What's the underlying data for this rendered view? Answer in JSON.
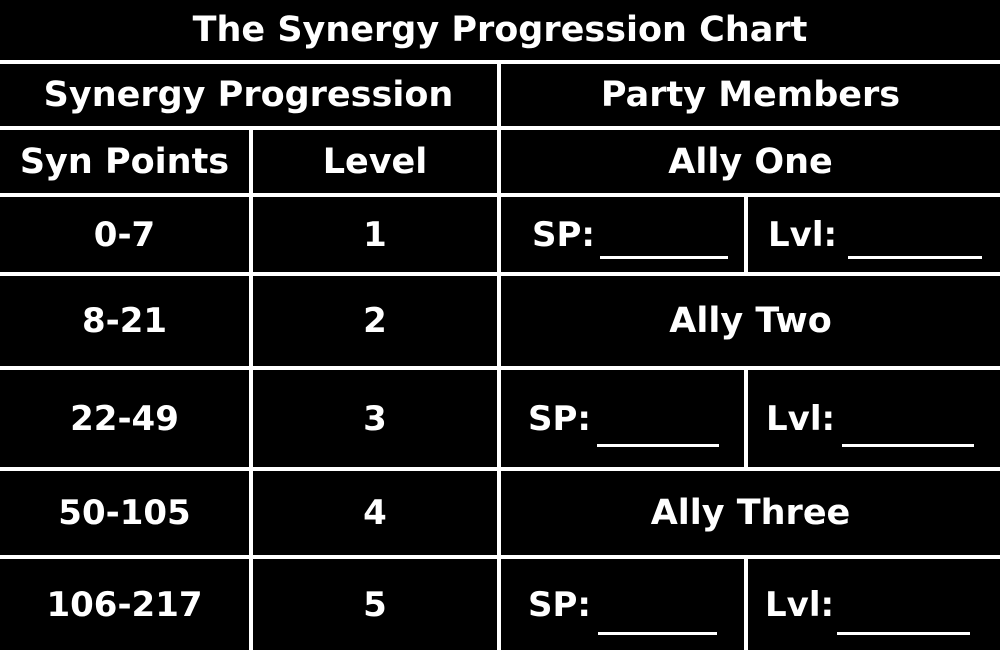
{
  "title": "The Synergy Progression Chart",
  "headers": {
    "synergy_progression": "Synergy Progression",
    "party_members": "Party Members",
    "syn_points": "Syn Points",
    "level": "Level"
  },
  "rows": [
    {
      "points": "0-7",
      "level": "1"
    },
    {
      "points": "8-21",
      "level": "2"
    },
    {
      "points": "22-49",
      "level": "3"
    },
    {
      "points": "50-105",
      "level": "4"
    },
    {
      "points": "106-217",
      "level": "5"
    }
  ],
  "allies": [
    {
      "name": "Ally One",
      "sp_label": "SP:",
      "lvl_label": "Lvl:"
    },
    {
      "name": "Ally Two",
      "sp_label": "SP:",
      "lvl_label": "Lvl:"
    },
    {
      "name": "Ally Three",
      "sp_label": "SP:",
      "lvl_label": "Lvl:"
    }
  ],
  "colors": {
    "background": "#000000",
    "foreground": "#ffffff"
  }
}
